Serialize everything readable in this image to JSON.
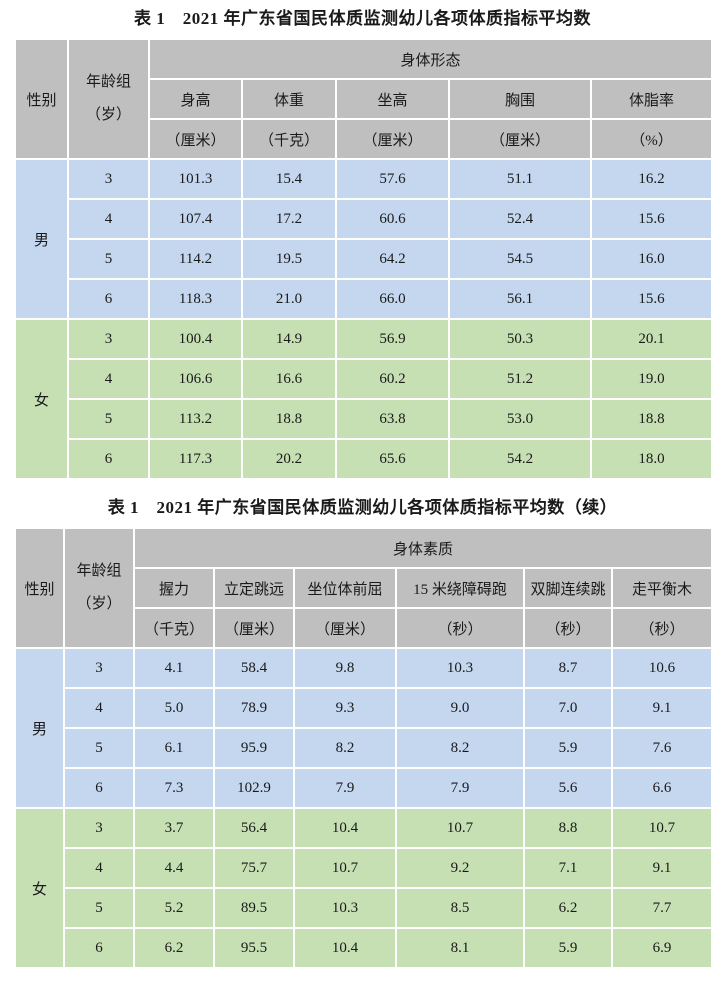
{
  "document": {
    "type": "report-page",
    "background": "#ffffff"
  },
  "colors": {
    "header_bg": "#bfbfbf",
    "male_row_bg": "#c4d7ef",
    "female_row_bg": "#c6e0b4",
    "grid_line": "#ffffff",
    "text": "#1a1a1a"
  },
  "table1": {
    "title": "表 1　2021 年广东省国民体质监测幼儿各项体质指标平均数",
    "header": {
      "gender_label": "性别",
      "age_group_lines": [
        "年龄组",
        "（岁）"
      ],
      "category_label": "身体形态",
      "columns": [
        {
          "name": "身高",
          "unit": "（厘米）"
        },
        {
          "name": "体重",
          "unit": "（千克）"
        },
        {
          "name": "坐高",
          "unit": "（厘米）"
        },
        {
          "name": "胸围",
          "unit": "（厘米）"
        },
        {
          "name": "体脂率",
          "unit": "（%）"
        }
      ]
    },
    "groups": [
      {
        "gender": "男",
        "row_color": "#c4d7ef",
        "rows": [
          {
            "age": "3",
            "values": [
              "101.3",
              "15.4",
              "57.6",
              "51.1",
              "16.2"
            ]
          },
          {
            "age": "4",
            "values": [
              "107.4",
              "17.2",
              "60.6",
              "52.4",
              "15.6"
            ]
          },
          {
            "age": "5",
            "values": [
              "114.2",
              "19.5",
              "64.2",
              "54.5",
              "16.0"
            ]
          },
          {
            "age": "6",
            "values": [
              "118.3",
              "21.0",
              "66.0",
              "56.1",
              "15.6"
            ]
          }
        ]
      },
      {
        "gender": "女",
        "row_color": "#c6e0b4",
        "rows": [
          {
            "age": "3",
            "values": [
              "100.4",
              "14.9",
              "56.9",
              "50.3",
              "20.1"
            ]
          },
          {
            "age": "4",
            "values": [
              "106.6",
              "16.6",
              "60.2",
              "51.2",
              "19.0"
            ]
          },
          {
            "age": "5",
            "values": [
              "113.2",
              "18.8",
              "63.8",
              "53.0",
              "18.8"
            ]
          },
          {
            "age": "6",
            "values": [
              "117.3",
              "20.2",
              "65.6",
              "54.2",
              "18.0"
            ]
          }
        ]
      }
    ]
  },
  "table2": {
    "title": "表 1　2021 年广东省国民体质监测幼儿各项体质指标平均数（续）",
    "header": {
      "gender_label": "性别",
      "age_group_lines": [
        "年龄组",
        "（岁）"
      ],
      "category_label": "身体素质",
      "columns": [
        {
          "name": "握力",
          "unit": "（千克）"
        },
        {
          "name": "立定跳远",
          "unit": "（厘米）"
        },
        {
          "name": "坐位体前屈",
          "unit": "（厘米）"
        },
        {
          "name": "15 米绕障碍跑",
          "unit": "（秒）"
        },
        {
          "name": "双脚连续跳",
          "unit": "（秒）"
        },
        {
          "name": "走平衡木",
          "unit": "（秒）"
        }
      ]
    },
    "groups": [
      {
        "gender": "男",
        "row_color": "#c4d7ef",
        "rows": [
          {
            "age": "3",
            "values": [
              "4.1",
              "58.4",
              "9.8",
              "10.3",
              "8.7",
              "10.6"
            ]
          },
          {
            "age": "4",
            "values": [
              "5.0",
              "78.9",
              "9.3",
              "9.0",
              "7.0",
              "9.1"
            ]
          },
          {
            "age": "5",
            "values": [
              "6.1",
              "95.9",
              "8.2",
              "8.2",
              "5.9",
              "7.6"
            ]
          },
          {
            "age": "6",
            "values": [
              "7.3",
              "102.9",
              "7.9",
              "7.9",
              "5.6",
              "6.6"
            ]
          }
        ]
      },
      {
        "gender": "女",
        "row_color": "#c6e0b4",
        "rows": [
          {
            "age": "3",
            "values": [
              "3.7",
              "56.4",
              "10.4",
              "10.7",
              "8.8",
              "10.7"
            ]
          },
          {
            "age": "4",
            "values": [
              "4.4",
              "75.7",
              "10.7",
              "9.2",
              "7.1",
              "9.1"
            ]
          },
          {
            "age": "5",
            "values": [
              "5.2",
              "89.5",
              "10.3",
              "8.5",
              "6.2",
              "7.7"
            ]
          },
          {
            "age": "6",
            "values": [
              "6.2",
              "95.5",
              "10.4",
              "8.1",
              "5.9",
              "6.9"
            ]
          }
        ]
      }
    ]
  }
}
